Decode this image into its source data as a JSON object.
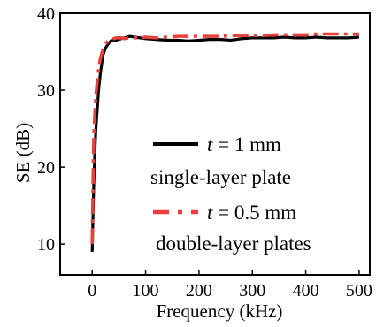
{
  "chart_data": {
    "type": "line",
    "title": "",
    "xlabel": "Frequency (kHz)",
    "ylabel": "SE (dB)",
    "xlim": [
      -60,
      520
    ],
    "ylim": [
      6,
      40
    ],
    "xticks": [
      0,
      100,
      200,
      300,
      400,
      500
    ],
    "yticks": [
      10,
      20,
      30,
      40
    ],
    "xtick_labels": [
      "0",
      "100",
      "200",
      "300",
      "400",
      "500"
    ],
    "ytick_labels": [
      "10",
      "20",
      "30",
      "40"
    ],
    "grid": false,
    "legend_position": "center-right",
    "series": [
      {
        "name": "t = 1 mm single-layer plate",
        "legend_var": "t",
        "legend_eq": " = 1 mm",
        "legend_desc": "single-layer plate",
        "color": "#000000",
        "style": "solid",
        "x": [
          0,
          1,
          2,
          3,
          5,
          7,
          10,
          12,
          15,
          18,
          20,
          25,
          30,
          35,
          40,
          45,
          50,
          55,
          60,
          70,
          80,
          90,
          100,
          120,
          140,
          160,
          180,
          200,
          220,
          240,
          260,
          280,
          300,
          320,
          340,
          360,
          380,
          400,
          420,
          440,
          460,
          480,
          500
        ],
        "y": [
          9,
          12,
          15,
          18,
          22,
          25,
          28,
          30,
          32,
          33.5,
          34.5,
          35.5,
          36,
          36.4,
          36.5,
          36.5,
          36.6,
          36.7,
          36.8,
          37,
          36.9,
          36.8,
          36.7,
          36.6,
          36.5,
          36.5,
          36.4,
          36.5,
          36.6,
          36.6,
          36.5,
          36.7,
          36.8,
          36.8,
          36.8,
          36.9,
          36.8,
          36.8,
          36.9,
          36.8,
          36.8,
          36.8,
          36.9
        ]
      },
      {
        "name": "t = 0.5 mm double-layer plates",
        "legend_var": "t",
        "legend_eq": " = 0.5 mm",
        "legend_desc": "double-layer plates",
        "color": "#e8403c",
        "style": "dashdot",
        "x": [
          0,
          1,
          2,
          3,
          5,
          7,
          10,
          12,
          15,
          18,
          20,
          25,
          30,
          35,
          40,
          45,
          50,
          55,
          60,
          70,
          80,
          90,
          100,
          120,
          140,
          160,
          180,
          200,
          220,
          240,
          260,
          280,
          300,
          320,
          340,
          360,
          380,
          400,
          420,
          440,
          460,
          480,
          500
        ],
        "y": [
          10,
          15,
          20,
          24,
          27,
          29.5,
          31.5,
          32.8,
          34,
          34.8,
          35.2,
          36,
          36.4,
          36.6,
          36.7,
          36.8,
          36.8,
          36.8,
          36.7,
          36.8,
          36.8,
          36.8,
          36.9,
          36.8,
          36.9,
          37,
          37,
          37,
          37,
          37,
          37.1,
          37.1,
          37.1,
          37.1,
          37.2,
          37.2,
          37.2,
          37.2,
          37.3,
          37.3,
          37.3,
          37.3,
          37.3
        ]
      }
    ]
  }
}
